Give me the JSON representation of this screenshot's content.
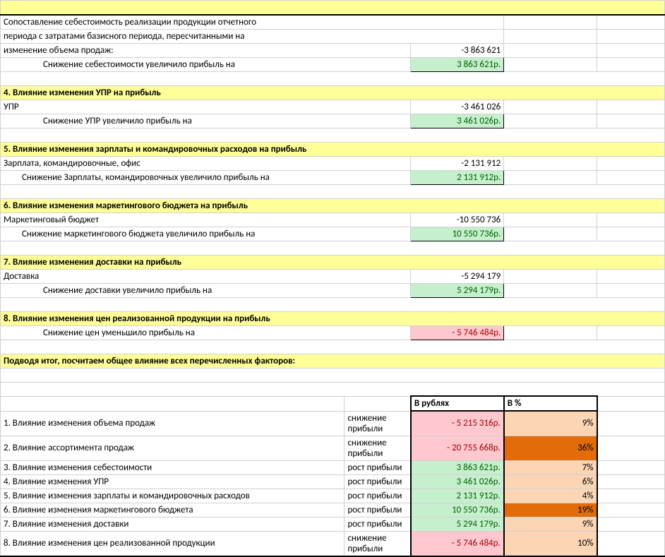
{
  "r1": {
    "text": "Сопоставление себестоимость реализации продукции отчетного"
  },
  "r2": {
    "text": "периода с затратами базисного периода, пересчитанными на"
  },
  "r3": {
    "text": "изменение объема продаж:",
    "val": "-3 863 621"
  },
  "r4": {
    "label": "Снижение себестоимости увеличило прибыль на",
    "val": "3 863 621р."
  },
  "s4": {
    "title": "4. Влияние изменения УПР на прибыль"
  },
  "s4r1": {
    "label": "УПР",
    "val": "-3 461 026"
  },
  "s4r2": {
    "label": "Снижение УПР увеличило прибыль на",
    "val": "3 461 026р."
  },
  "s5": {
    "title": "5. Влияние изменения зарплаты и командировочных расходов на прибыль"
  },
  "s5r1": {
    "label": "Зарплата, командировочные, офис",
    "val": "-2 131 912"
  },
  "s5r2": {
    "label": "Снижение Зарплаты, командировочных увеличило прибыль на",
    "val": "2 131 912р."
  },
  "s6": {
    "title": "6. Влияние изменения  маркетингового бюджета на прибыль"
  },
  "s6r1": {
    "label": "Маркетинговый бюджет",
    "val": "-10 550 736"
  },
  "s6r2": {
    "label": "Снижение маркетингового бюджета увеличило прибыль на",
    "val": "10 550 736р."
  },
  "s7": {
    "title": "7. Влияние изменения доставки на прибыль"
  },
  "s7r1": {
    "label": "Доставка",
    "val": "-5 294 179"
  },
  "s7r2": {
    "label": "Снижение доставки увеличило прибыль на",
    "val": "5 294 179р."
  },
  "s8": {
    "title": "8. Влияние изменения цен реализованной продукции на прибыль"
  },
  "s8r1": {
    "label": "Снижение цен уменьшило прибыль на",
    "val": "5 746 484р."
  },
  "summary": {
    "title": "Подводя итог, посчитаем общее влияние всех перечисленных факторов:"
  },
  "th": {
    "rub": "В рублях",
    "pct": "В %"
  },
  "t1": {
    "f": "1. Влияние изменения объема продаж",
    "r": "снижение прибыли",
    "v": "5 215 316р.",
    "p": "9%",
    "neg": true,
    "pclass": "peach"
  },
  "t2": {
    "f": "2. Влияние ассортимента продаж",
    "r": "снижение прибыли",
    "v": "20 755 668р.",
    "p": "36%",
    "neg": true,
    "pclass": "orange"
  },
  "t3": {
    "f": "3. Влияние изменения себестоимости",
    "r": "рост прибыли",
    "v": "3 863 621р.",
    "p": "7%",
    "neg": false,
    "pclass": "peach"
  },
  "t4": {
    "f": "4. Влияние изменения УПР",
    "r": "рост прибыли",
    "v": "3 461 026р.",
    "p": "6%",
    "neg": false,
    "pclass": "peach"
  },
  "t5": {
    "f": "5. Влияние изменения зарплаты и командировочных расходов",
    "r": "рост прибыли",
    "v": "2 131 912р.",
    "p": "4%",
    "neg": false,
    "pclass": "peach"
  },
  "t6": {
    "f": "6. Влияние изменения  маркетингового бюджета",
    "r": "рост прибыли",
    "v": "10 550 736р.",
    "p": "19%",
    "neg": false,
    "pclass": "orange"
  },
  "t7": {
    "f": "7. Влияние изменения доставки",
    "r": "рост прибыли",
    "v": "5 294 179р.",
    "p": "9%",
    "neg": false,
    "pclass": "peach"
  },
  "t8": {
    "f": "8. Влияние изменения цен реализованной продукции",
    "r": "снижение прибыли",
    "v": "5 746 484р.",
    "p": "10%",
    "neg": true,
    "pclass": "peach"
  }
}
